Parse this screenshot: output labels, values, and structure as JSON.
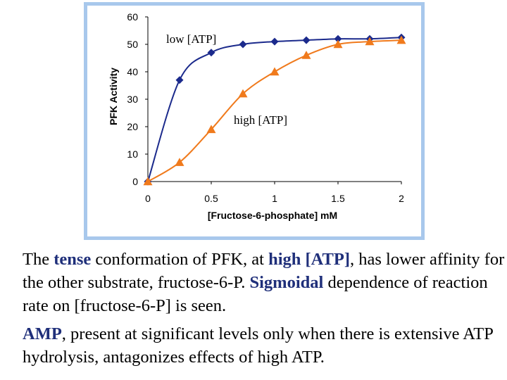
{
  "chart_data": {
    "type": "line",
    "x": [
      0,
      0.25,
      0.5,
      0.75,
      1,
      1.25,
      1.5,
      1.75,
      2
    ],
    "series": [
      {
        "name": "low [ATP]",
        "color": "#1b2a8c",
        "marker": "diamond",
        "values": [
          0,
          37,
          47,
          50,
          51,
          51.5,
          52,
          52,
          52.5
        ]
      },
      {
        "name": "high [ATP]",
        "color": "#f07a1c",
        "marker": "triangle",
        "values": [
          0,
          7,
          19,
          32,
          40,
          46,
          50,
          51,
          51.5
        ]
      }
    ],
    "xlabel": "[Fructose-6-phosphate] mM",
    "ylabel": "PFK Activity",
    "xlim": [
      0,
      2
    ],
    "ylim": [
      0,
      60
    ],
    "xticks": [
      "0",
      "0.5",
      "1",
      "1.5",
      "2"
    ],
    "yticks": [
      "0",
      "10",
      "20",
      "30",
      "40",
      "50",
      "60"
    ],
    "grid": false,
    "legend": "inline labels"
  },
  "caption": {
    "p1": [
      {
        "text": "The ",
        "hl": false
      },
      {
        "text": "tense",
        "hl": true
      },
      {
        "text": " conformation of PFK, at ",
        "hl": false
      },
      {
        "text": "high [ATP]",
        "hl": true
      },
      {
        "text": ", has lower affinity for the other substrate, fructose-6-P. ",
        "hl": false
      },
      {
        "text": "Sigmoidal",
        "hl": true
      },
      {
        "text": " dependence of reaction rate on [fructose-6-P] is seen.",
        "hl": false
      }
    ],
    "p2": [
      {
        "text": "AMP",
        "hl": true
      },
      {
        "text": ", present at significant levels only when there is extensive ATP hydrolysis, antagonizes effects of high ATP.",
        "hl": false
      }
    ]
  }
}
